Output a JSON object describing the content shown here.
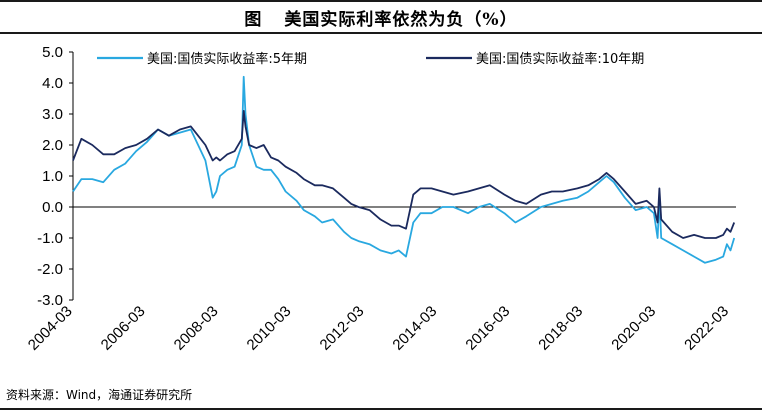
{
  "header": {
    "label": "图",
    "title": "美国实际利率依然为负（%）"
  },
  "chart_data": {
    "type": "line",
    "title": "美国实际利率依然为负（%）",
    "xlabel": "",
    "ylabel": "",
    "ylim": [
      -3.0,
      5.0
    ],
    "yticks": [
      "5.0",
      "4.0",
      "3.0",
      "2.0",
      "1.0",
      "0.0",
      "-1.0",
      "-2.0",
      "-3.0"
    ],
    "xticks": [
      "2004-03",
      "2006-03",
      "2008-03",
      "2010-03",
      "2012-03",
      "2014-03",
      "2016-03",
      "2018-03",
      "2020-03",
      "2022-03"
    ],
    "xlim": [
      2004.17,
      2022.35
    ],
    "series": [
      {
        "name": "美国:国债实际收益率:5年期",
        "color": "#29a8e0",
        "x": [
          2004.17,
          2004.4,
          2004.7,
          2005.0,
          2005.3,
          2005.6,
          2005.9,
          2006.2,
          2006.5,
          2006.8,
          2007.1,
          2007.4,
          2007.6,
          2007.8,
          2008.0,
          2008.1,
          2008.2,
          2008.4,
          2008.6,
          2008.8,
          2008.85,
          2008.9,
          2009.0,
          2009.2,
          2009.4,
          2009.6,
          2009.8,
          2010.0,
          2010.3,
          2010.5,
          2010.8,
          2011.0,
          2011.3,
          2011.6,
          2011.8,
          2012.0,
          2012.3,
          2012.6,
          2012.9,
          2013.1,
          2013.3,
          2013.5,
          2013.7,
          2014.0,
          2014.3,
          2014.6,
          2015.0,
          2015.3,
          2015.6,
          2016.0,
          2016.3,
          2016.6,
          2017.0,
          2017.3,
          2017.6,
          2018.0,
          2018.3,
          2018.6,
          2018.8,
          2019.0,
          2019.3,
          2019.6,
          2019.9,
          2020.1,
          2020.2,
          2020.25,
          2020.3,
          2020.6,
          2020.9,
          2021.2,
          2021.5,
          2021.8,
          2022.0,
          2022.1,
          2022.2,
          2022.3
        ],
        "values": [
          0.5,
          0.9,
          0.9,
          0.8,
          1.2,
          1.4,
          1.8,
          2.1,
          2.5,
          2.3,
          2.4,
          2.5,
          2.0,
          1.5,
          0.3,
          0.5,
          1.0,
          1.2,
          1.3,
          2.0,
          4.2,
          3.0,
          2.0,
          1.3,
          1.2,
          1.2,
          0.9,
          0.5,
          0.2,
          -0.1,
          -0.3,
          -0.5,
          -0.4,
          -0.8,
          -1.0,
          -1.1,
          -1.2,
          -1.4,
          -1.5,
          -1.4,
          -1.6,
          -0.5,
          -0.2,
          -0.2,
          0.0,
          0.0,
          -0.2,
          0.0,
          0.1,
          -0.2,
          -0.5,
          -0.3,
          0.0,
          0.1,
          0.2,
          0.3,
          0.5,
          0.8,
          1.0,
          0.8,
          0.3,
          -0.1,
          0.0,
          -0.2,
          -1.0,
          0.3,
          -1.0,
          -1.2,
          -1.4,
          -1.6,
          -1.8,
          -1.7,
          -1.6,
          -1.2,
          -1.4,
          -1.0
        ]
      },
      {
        "name": "美国:国债实际收益率:10年期",
        "color": "#1b2a5e",
        "x": [
          2004.17,
          2004.4,
          2004.7,
          2005.0,
          2005.3,
          2005.6,
          2005.9,
          2006.2,
          2006.5,
          2006.8,
          2007.1,
          2007.4,
          2007.6,
          2007.8,
          2008.0,
          2008.1,
          2008.2,
          2008.4,
          2008.6,
          2008.8,
          2008.85,
          2008.9,
          2009.0,
          2009.2,
          2009.4,
          2009.6,
          2009.8,
          2010.0,
          2010.3,
          2010.5,
          2010.8,
          2011.0,
          2011.3,
          2011.6,
          2011.8,
          2012.0,
          2012.3,
          2012.6,
          2012.9,
          2013.1,
          2013.3,
          2013.5,
          2013.7,
          2014.0,
          2014.3,
          2014.6,
          2015.0,
          2015.3,
          2015.6,
          2016.0,
          2016.3,
          2016.6,
          2017.0,
          2017.3,
          2017.6,
          2018.0,
          2018.3,
          2018.6,
          2018.8,
          2019.0,
          2019.3,
          2019.6,
          2019.9,
          2020.1,
          2020.2,
          2020.25,
          2020.3,
          2020.6,
          2020.9,
          2021.2,
          2021.5,
          2021.8,
          2022.0,
          2022.1,
          2022.2,
          2022.3
        ],
        "values": [
          1.5,
          2.2,
          2.0,
          1.7,
          1.7,
          1.9,
          2.0,
          2.2,
          2.5,
          2.3,
          2.5,
          2.6,
          2.3,
          2.0,
          1.5,
          1.6,
          1.5,
          1.7,
          1.8,
          2.2,
          3.1,
          2.6,
          2.0,
          1.9,
          2.0,
          1.6,
          1.5,
          1.3,
          1.1,
          0.9,
          0.7,
          0.7,
          0.6,
          0.3,
          0.1,
          0.0,
          -0.1,
          -0.4,
          -0.6,
          -0.6,
          -0.7,
          0.4,
          0.6,
          0.6,
          0.5,
          0.4,
          0.5,
          0.6,
          0.7,
          0.4,
          0.2,
          0.1,
          0.4,
          0.5,
          0.5,
          0.6,
          0.7,
          0.9,
          1.1,
          0.9,
          0.5,
          0.1,
          0.2,
          0.0,
          -0.5,
          0.6,
          -0.4,
          -0.8,
          -1.0,
          -0.9,
          -1.0,
          -1.0,
          -0.9,
          -0.7,
          -0.8,
          -0.5
        ]
      }
    ]
  },
  "source": "资料来源：Wind，海通证券研究所"
}
